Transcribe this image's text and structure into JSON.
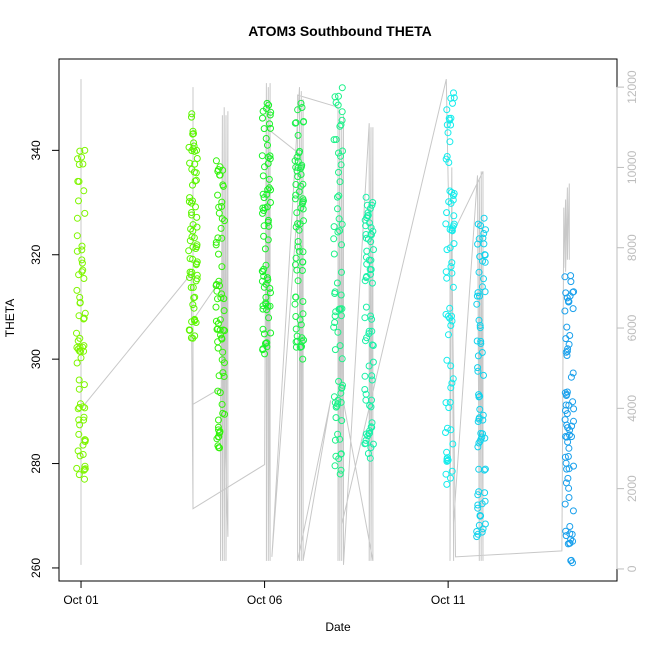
{
  "chart_data": {
    "type": "scatter",
    "title": "ATOM3 Southbound THETA",
    "xlabel": "Date",
    "ylabel": "THETA",
    "x_ticks": [
      "Oct 01",
      "Oct 06",
      "Oct 11"
    ],
    "x_tick_values": [
      1,
      6,
      11
    ],
    "xlim": [
      0.4,
      15.6
    ],
    "y_ticks": [
      260,
      280,
      300,
      320,
      340
    ],
    "ylim": [
      257.5,
      357.5
    ],
    "y2_ticks": [
      0,
      2000,
      4000,
      6000,
      8000,
      10000,
      12000
    ],
    "y2lim": [
      -300,
      12700
    ],
    "y2_color": "#bdbdbd",
    "line_color": "#c8c8c8",
    "grid": false,
    "legend": "none",
    "point_series": [
      {
        "x": 1.0,
        "ymin": 277,
        "ymax": 340,
        "color": "#7ff600"
      },
      {
        "x": 4.05,
        "ymin": 304,
        "ymax": 347,
        "color": "#5cf600"
      },
      {
        "x": 4.8,
        "ymin": 283,
        "ymax": 338,
        "color": "#34f20c"
      },
      {
        "x": 6.05,
        "ymin": 301,
        "ymax": 349,
        "color": "#18f227"
      },
      {
        "x": 6.95,
        "ymin": 300,
        "ymax": 349,
        "color": "#1af24a"
      },
      {
        "x": 8.0,
        "ymin": 278,
        "ymax": 352,
        "color": "#1af288"
      },
      {
        "x": 8.85,
        "ymin": 281,
        "ymax": 331,
        "color": "#19f0a8"
      },
      {
        "x": 11.05,
        "ymin": 276,
        "ymax": 351,
        "color": "#15ecec"
      },
      {
        "x": 11.9,
        "ymin": 266,
        "ymax": 327,
        "color": "#13d2ec"
      },
      {
        "x": 14.3,
        "ymin": 261,
        "ymax": 316,
        "color": "#1aa0ec"
      }
    ],
    "depth_line": {
      "axis": "right",
      "x": [
        1.0,
        1.0,
        1.0,
        1.1,
        4.0,
        4.05,
        4.05,
        4.05,
        4.05,
        4.8,
        4.8,
        4.85,
        4.85,
        4.9,
        4.9,
        4.95,
        4.95,
        5.0,
        5.0,
        4.8,
        4.05,
        4.05,
        6.0,
        6.05,
        6.05,
        6.1,
        6.1,
        6.15,
        6.15,
        6.1,
        7.0,
        6.2,
        6.95,
        6.95,
        7.0,
        7.0,
        7.05,
        7.05,
        7.8,
        6.9,
        6.9,
        8.0,
        8.0,
        8.05,
        8.05,
        8.1,
        8.1,
        8.15,
        8.15,
        8.85,
        8.85,
        8.9,
        8.9,
        8.95,
        8.95,
        8.1,
        8.1,
        10.95,
        11.0,
        11.05,
        11.05,
        11.1,
        11.15,
        11.15,
        11.8,
        11.85,
        11.85,
        11.9,
        11.9,
        11.95,
        11.95,
        11.1,
        11.2,
        14.1,
        14.15,
        14.15,
        14.2,
        14.2,
        14.25,
        14.25,
        14.3,
        14.3
      ],
      "y": [
        100,
        12200,
        3950,
        4100,
        7350,
        1500,
        12000,
        11700,
        4100,
        4500,
        200,
        11300,
        200,
        11500,
        200,
        11300,
        200,
        11400,
        800,
        7200,
        6200,
        1500,
        2600,
        12100,
        200,
        12000,
        200,
        12100,
        200,
        10950,
        10300,
        300,
        12000,
        200,
        11900,
        200,
        11700,
        200,
        4200,
        200,
        11800,
        11500,
        200,
        11400,
        200,
        11000,
        200,
        11300,
        100,
        11100,
        200,
        11000,
        200,
        11000,
        200,
        4400,
        1100,
        12200,
        9700,
        7900,
        200,
        10000,
        200,
        1150,
        9800,
        200,
        9700,
        200,
        9900,
        200,
        9900,
        8300,
        300,
        450,
        9000,
        7500,
        9200,
        7400,
        9500,
        7700,
        9600,
        7700
      ]
    }
  }
}
